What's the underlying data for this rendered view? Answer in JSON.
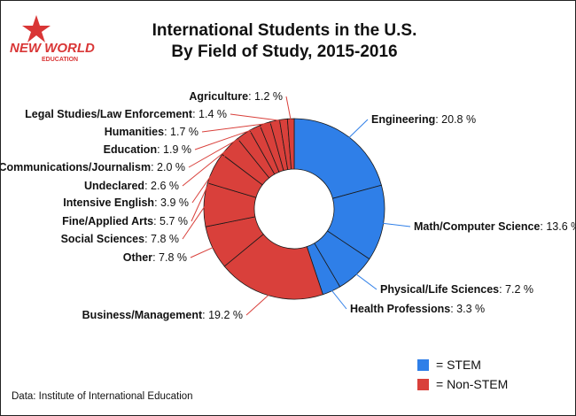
{
  "logo": {
    "line1": "NEW WORLD",
    "line2": "EDUCATION",
    "star_color": "#d93636",
    "text_color": "#d93636"
  },
  "chart_data": {
    "type": "pie",
    "donut": true,
    "title_lines": [
      "International Students in the U.S.",
      "By Field of Study, 2015-2016"
    ],
    "slices": [
      {
        "label": "Engineering",
        "value": 20.8,
        "group": "STEM"
      },
      {
        "label": "Math/Computer Science",
        "value": 13.6,
        "group": "STEM"
      },
      {
        "label": "Physical/Life Sciences",
        "value": 7.2,
        "group": "STEM"
      },
      {
        "label": "Health Professions",
        "value": 3.3,
        "group": "STEM"
      },
      {
        "label": "Business/Management",
        "value": 19.2,
        "group": "Non-STEM"
      },
      {
        "label": "Other",
        "value": 7.8,
        "group": "Non-STEM"
      },
      {
        "label": "Social Sciences",
        "value": 7.8,
        "group": "Non-STEM"
      },
      {
        "label": "Fine/Applied Arts",
        "value": 5.7,
        "group": "Non-STEM"
      },
      {
        "label": "Intensive English",
        "value": 3.9,
        "group": "Non-STEM"
      },
      {
        "label": "Undeclared",
        "value": 2.6,
        "group": "Non-STEM"
      },
      {
        "label": "Communications/Journalism",
        "value": 2.0,
        "group": "Non-STEM"
      },
      {
        "label": "Education",
        "value": 1.9,
        "group": "Non-STEM"
      },
      {
        "label": "Humanities",
        "value": 1.7,
        "group": "Non-STEM"
      },
      {
        "label": "Legal Studies/Law Enforcement",
        "value": 1.4,
        "group": "Non-STEM"
      },
      {
        "label": "Agriculture",
        "value": 1.2,
        "group": "Non-STEM"
      }
    ],
    "value_suffix": " %",
    "colors": {
      "STEM": "#2f7fe8",
      "Non-STEM": "#d9403b"
    },
    "legend": [
      {
        "key": "STEM",
        "label": "= STEM"
      },
      {
        "key": "Non-STEM",
        "label": "= Non-STEM"
      }
    ],
    "legend_position": "bottom-right"
  },
  "source": "Data: Institute of International Education"
}
